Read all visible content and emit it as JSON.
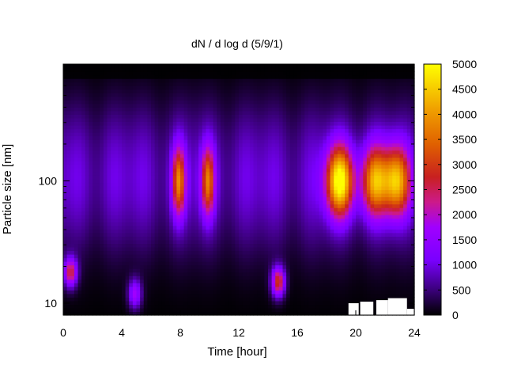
{
  "chart_data": {
    "type": "heatmap",
    "title": "dN / d log d (5/9/1)",
    "xlabel": "Time [hour]",
    "ylabel": "Particle size [nm]",
    "xlim": [
      0,
      24
    ],
    "ylim_nm": [
      8,
      900
    ],
    "y_scale": "log",
    "x_ticks": [
      0,
      4,
      8,
      12,
      16,
      20,
      24
    ],
    "y_ticks": [
      10,
      100
    ],
    "colorbar": {
      "range": [
        0,
        5000
      ],
      "ticks": [
        0,
        500,
        1000,
        1500,
        2000,
        2500,
        3000,
        3500,
        4000,
        4500,
        5000
      ],
      "palette": "black-purple-red-orange-yellow"
    },
    "blobs_note_values": [
      {
        "t": 0.5,
        "d_nm": 18,
        "peak": 2500
      },
      {
        "t": 4.9,
        "d_nm": 12,
        "peak": 1700
      },
      {
        "t": 7.9,
        "d_nm": 100,
        "peak": 2900
      },
      {
        "t": 9.9,
        "d_nm": 100,
        "peak": 2800
      },
      {
        "t": 14.7,
        "d_nm": 15,
        "peak": 2800
      },
      {
        "t": 18.9,
        "d_nm": 100,
        "peak": 4400
      },
      {
        "t": 21.3,
        "d_nm": 100,
        "peak": 3300
      },
      {
        "t": 22.8,
        "d_nm": 100,
        "peak": 3500
      }
    ]
  }
}
